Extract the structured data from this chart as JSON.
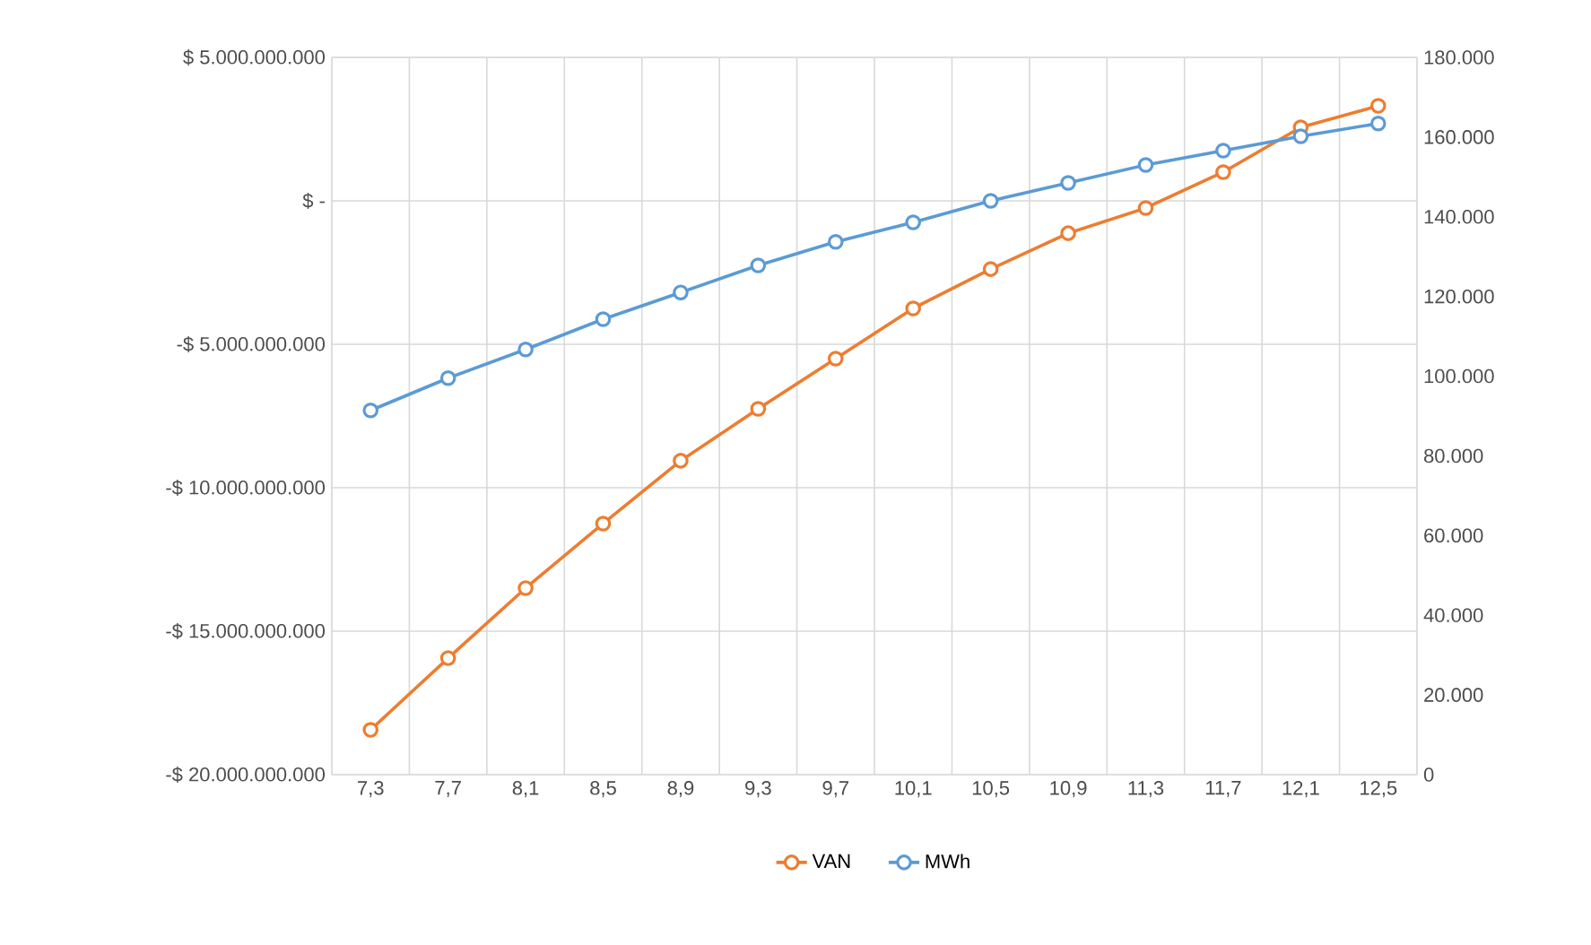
{
  "chart_data": {
    "type": "line",
    "categories": [
      "7,3",
      "7,7",
      "8,1",
      "8,5",
      "8,9",
      "9,3",
      "9,7",
      "10,1",
      "10,5",
      "10,9",
      "11,3",
      "11,7",
      "12,1",
      "12,5"
    ],
    "series": [
      {
        "name": "VAN",
        "color": "#ed7d31",
        "values": [
          -18440000000,
          -15940000000,
          -13500000000,
          -11250000000,
          -9060000000,
          -7250000000,
          -5500000000,
          -3750000000,
          -2380000000,
          -1130000000,
          -250000000,
          1000000000,
          2560000000,
          3310000000
        ]
      },
      {
        "name": "MWh",
        "color": "#5b9bd5",
        "axis": "y2",
        "values": [
          91400,
          99500,
          106700,
          114300,
          121000,
          127800,
          133700,
          138600,
          144000,
          148500,
          153000,
          156600,
          160200,
          163400
        ]
      }
    ],
    "ylim": [
      -20000000000,
      5000000000
    ],
    "yticks": [
      {
        "value": -20000000000,
        "label": "-$ 20.000.000.000"
      },
      {
        "value": -15000000000,
        "label": "-$ 15.000.000.000"
      },
      {
        "value": -10000000000,
        "label": "-$ 10.000.000.000"
      },
      {
        "value": -5000000000,
        "label": "-$ 5.000.000.000"
      },
      {
        "value": 0,
        "label": "$ -"
      },
      {
        "value": 5000000000,
        "label": "$ 5.000.000.000"
      }
    ],
    "y2lim": [
      0,
      180000
    ],
    "y2ticks": [
      0,
      {
        "value": 20000,
        "label": "20.000"
      },
      {
        "value": 40000,
        "label": "40.000"
      },
      {
        "value": 60000,
        "label": "60.000"
      },
      {
        "value": 80000,
        "label": "80.000"
      },
      {
        "value": 100000,
        "label": "100.000"
      },
      {
        "value": 120000,
        "label": "120.000"
      },
      {
        "value": 140000,
        "label": "140.000"
      },
      {
        "value": 160000,
        "label": "160.000"
      },
      {
        "value": 180000,
        "label": "180.000"
      }
    ],
    "grid": true,
    "legend": "bottom",
    "marker": "circle",
    "line_style": "solid"
  }
}
